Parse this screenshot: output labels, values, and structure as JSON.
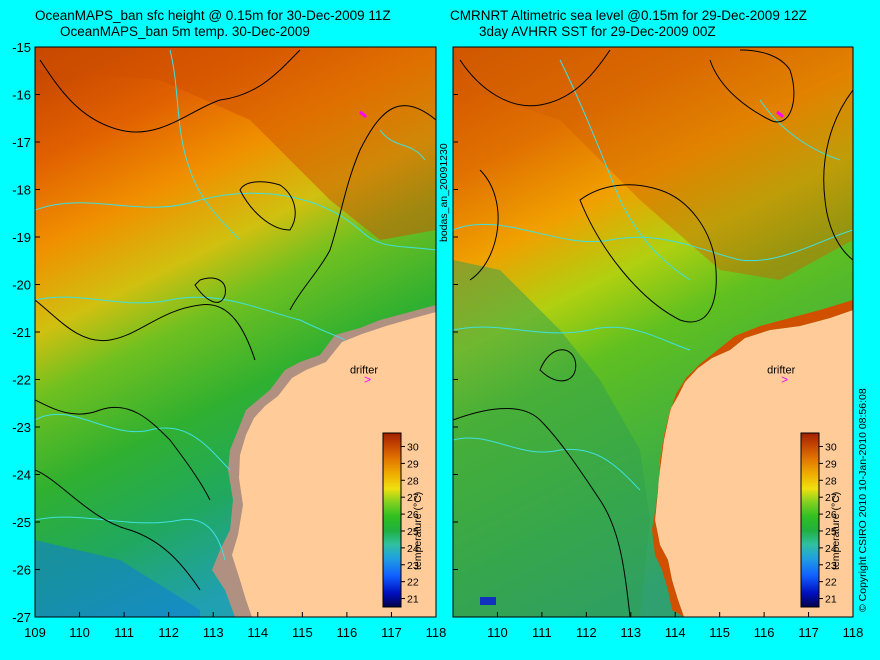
{
  "left_panel": {
    "title_line1": "OceanMAPS_ban sfc height @ 0.15m for 30-Dec-2009 11Z",
    "title_line2": "OceanMAPS_ban 5m temp. 30-Dec-2009",
    "drifter_label": "drifter",
    "colorbar_title": "temperature (°C)"
  },
  "right_panel": {
    "title_line1": "CMRNRT Altimetric sea level  @0.15m  for 29-Dec-2009 12Z",
    "title_line2": "3day AVHRR SST for 29-Dec-2009 00Z",
    "drifter_label": "drifter",
    "colorbar_title": "temperature (°C)"
  },
  "middle_vertical_text": "bodas_an_20091230",
  "right_vertical_text": "© Copyright CSIRO 2010   10-Jan-2010 08:56:08",
  "axes": {
    "lon_ticks": [
      "109",
      "110",
      "111",
      "112",
      "113",
      "114",
      "115",
      "116",
      "117",
      "118"
    ],
    "lat_ticks": [
      "-15",
      "-16",
      "-17",
      "-18",
      "-19",
      "-20",
      "-21",
      "-22",
      "-23",
      "-24",
      "-25",
      "-26",
      "-27"
    ],
    "lon_range": [
      109,
      118
    ],
    "lat_range": [
      -27,
      -15
    ]
  },
  "colorbar": {
    "ticks": [
      "30",
      "29",
      "28",
      "27",
      "26",
      "25",
      "24",
      "23",
      "22",
      "21"
    ],
    "range": [
      20.5,
      30.8
    ],
    "colors": [
      "#00004a",
      "#0010c0",
      "#1060ff",
      "#20a0e0",
      "#30c0a0",
      "#20b040",
      "#30c020",
      "#80d020",
      "#d0e010",
      "#f0d000",
      "#f0a000",
      "#e07000",
      "#c04000",
      "#a02000"
    ]
  },
  "colors": {
    "background": "#00ffff",
    "land": "#ffcc99",
    "model_land_mask": "#b09080",
    "contour_black": "#000000",
    "contour_cyan": "#40e0e0",
    "drifter_marker": "#ff00ff"
  },
  "drifter": {
    "lon": 116.45,
    "lat": -22.0
  }
}
